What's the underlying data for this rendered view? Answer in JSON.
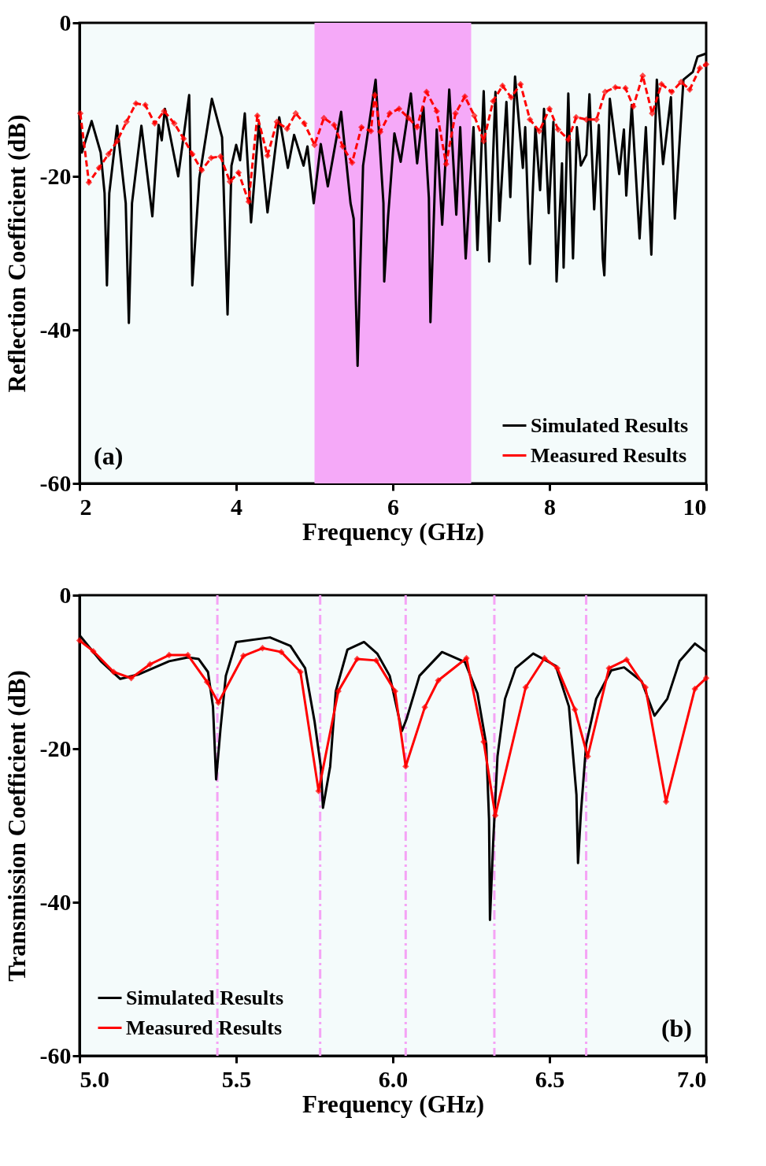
{
  "chart_data": [
    {
      "type": "line",
      "xlabel": "Frequency (GHz)",
      "ylabel": "Reflection Coefficient (dB)",
      "xlim": [
        2,
        10
      ],
      "ylim": [
        -60,
        0
      ],
      "xticks": [
        2,
        4,
        6,
        8,
        10
      ],
      "yticks": [
        -60,
        -40,
        -20,
        0
      ],
      "legend": "bottom right",
      "annotations": [
        "(a)"
      ],
      "bands": [
        {
          "axis": "x",
          "from": 5,
          "to": 7,
          "color": "#f5a9f8"
        }
      ],
      "series": [
        {
          "name": "Simulated Results",
          "color": "#000000",
          "marker": "none",
          "x": [
            2.0,
            2.03,
            2.155,
            2.27,
            2.32,
            2.35,
            2.38,
            2.48,
            2.59,
            2.63,
            2.67,
            2.79,
            2.93,
            3.01,
            3.05,
            3.09,
            3.26,
            3.4,
            3.44,
            3.53,
            3.69,
            3.82,
            3.89,
            3.94,
            4.0,
            4.05,
            4.11,
            4.19,
            4.29,
            4.4,
            4.55,
            4.66,
            4.74,
            4.86,
            4.91,
            4.99,
            5.08,
            5.17,
            5.34,
            5.46,
            5.5,
            5.55,
            5.62,
            5.78,
            5.88,
            5.89,
            5.94,
            6.02,
            6.1,
            6.23,
            6.31,
            6.39,
            6.46,
            6.48,
            6.56,
            6.63,
            6.72,
            6.81,
            6.86,
            6.93,
            7.03,
            7.08,
            7.16,
            7.23,
            7.31,
            7.36,
            7.45,
            7.5,
            7.56,
            7.66,
            7.69,
            7.75,
            7.82,
            7.88,
            7.93,
            7.99,
            8.05,
            8.09,
            8.16,
            8.18,
            8.24,
            8.3,
            8.35,
            8.4,
            8.47,
            8.51,
            8.57,
            8.63,
            8.68,
            8.7,
            8.77,
            8.89,
            8.95,
            8.98,
            9.05,
            9.15,
            9.23,
            9.3,
            9.37,
            9.45,
            9.55,
            9.6,
            9.71,
            9.83,
            9.89,
            10.0
          ],
          "values": [
            -12.0,
            -16.9,
            -12.8,
            -16.9,
            -22.2,
            -34.2,
            -22.2,
            -13.4,
            -23.5,
            -39.1,
            -23.5,
            -13.4,
            -25.2,
            -13.3,
            -15.3,
            -11.2,
            -20.0,
            -9.4,
            -34.2,
            -20.2,
            -9.9,
            -14.9,
            -38.0,
            -18.6,
            -15.9,
            -17.9,
            -11.8,
            -26.0,
            -13.1,
            -24.7,
            -12.3,
            -18.9,
            -14.6,
            -18.6,
            -16.1,
            -23.5,
            -15.8,
            -21.3,
            -11.6,
            -23.5,
            -25.5,
            -44.7,
            -18.6,
            -7.4,
            -23.5,
            -33.7,
            -25.2,
            -14.4,
            -18.1,
            -9.2,
            -18.3,
            -11.0,
            -22.8,
            -39.0,
            -13.9,
            -26.3,
            -8.7,
            -25.0,
            -13.6,
            -30.7,
            -13.6,
            -29.6,
            -8.9,
            -31.1,
            -9.0,
            -25.8,
            -10.3,
            -22.7,
            -7.0,
            -18.9,
            -13.6,
            -31.4,
            -13.6,
            -21.8,
            -11.2,
            -24.8,
            -12.9,
            -33.7,
            -18.3,
            -31.9,
            -9.2,
            -30.7,
            -13.6,
            -18.6,
            -17.2,
            -9.3,
            -24.3,
            -13.3,
            -30.7,
            -32.9,
            -9.9,
            -19.7,
            -13.9,
            -22.5,
            -10.7,
            -28.1,
            -13.6,
            -30.2,
            -7.4,
            -18.4,
            -9.7,
            -25.5,
            -7.4,
            -6.4,
            -4.4,
            -4.0
          ]
        },
        {
          "name": "Measured Results",
          "color": "#ff0000",
          "marker": "diamond",
          "line_style": "dashed",
          "x": [
            2.01,
            2.12,
            2.25,
            2.37,
            2.48,
            2.6,
            2.72,
            2.84,
            2.96,
            3.08,
            3.21,
            3.33,
            3.44,
            3.56,
            3.68,
            3.8,
            3.92,
            4.03,
            4.16,
            4.27,
            4.4,
            4.52,
            4.65,
            4.76,
            4.87,
            5.0,
            5.12,
            5.25,
            5.36,
            5.48,
            5.6,
            5.72,
            5.77,
            5.84,
            5.96,
            6.08,
            6.2,
            6.31,
            6.43,
            6.56,
            6.68,
            6.8,
            6.92,
            7.04,
            7.16,
            7.28,
            7.4,
            7.51,
            7.63,
            7.75,
            7.87,
            8.0,
            8.11,
            8.24,
            8.34,
            8.47,
            8.6,
            8.71,
            8.84,
            8.97,
            9.07,
            9.19,
            9.31,
            9.43,
            9.56,
            9.68,
            9.79,
            9.92,
            10.0
          ],
          "values": [
            -11.8,
            -20.8,
            -18.9,
            -17.1,
            -15.4,
            -12.9,
            -10.5,
            -10.7,
            -13.1,
            -11.5,
            -13.1,
            -15.1,
            -17.1,
            -19.2,
            -17.6,
            -17.4,
            -20.7,
            -19.5,
            -23.3,
            -12.1,
            -17.3,
            -12.9,
            -13.8,
            -11.8,
            -13.1,
            -15.9,
            -12.4,
            -13.3,
            -16.1,
            -18.2,
            -13.6,
            -14.1,
            -9.4,
            -14.2,
            -11.8,
            -11.2,
            -12.4,
            -13.6,
            -9.0,
            -11.5,
            -18.4,
            -11.8,
            -9.6,
            -12.1,
            -15.4,
            -10.2,
            -8.2,
            -9.7,
            -8.0,
            -12.6,
            -14.1,
            -11.2,
            -13.9,
            -15.2,
            -12.3,
            -12.6,
            -12.6,
            -9.0,
            -8.4,
            -8.5,
            -10.9,
            -6.9,
            -11.8,
            -8.0,
            -9.0,
            -7.7,
            -8.7,
            -5.9,
            -5.4
          ]
        }
      ]
    },
    {
      "type": "line",
      "xlabel": "Frequency (GHz)",
      "ylabel": "Transmission Coefficient (dB)",
      "xlim": [
        5,
        7
      ],
      "ylim": [
        -60,
        0
      ],
      "xticks": [
        {
          "value": 5,
          "label": "5.0"
        },
        5.5,
        {
          "value": 6,
          "label": "6.0"
        },
        6.5,
        {
          "value": 7,
          "label": "7.0"
        }
      ],
      "yticks": [
        -60,
        -40,
        -20,
        0
      ],
      "legend": "bottom left",
      "annotations": [
        "(b)"
      ],
      "ref_lines": [
        {
          "axis": "x",
          "value": 5.44,
          "color": "#f5a3f5",
          "line_style": "dashed"
        },
        {
          "axis": "x",
          "value": 5.768,
          "color": "#f5a3f5",
          "line_style": "dashed"
        },
        {
          "axis": "x",
          "value": 6.041,
          "color": "#f5a3f5",
          "line_style": "dashed"
        },
        {
          "axis": "x",
          "value": 6.324,
          "color": "#f5a3f5",
          "line_style": "dashed"
        },
        {
          "axis": "x",
          "value": 6.617,
          "color": "#f5a3f5",
          "line_style": "dashed"
        }
      ],
      "series": [
        {
          "name": "Simulated Results",
          "color": "#000000",
          "marker": "none",
          "x": [
            5.0,
            5.068,
            5.13,
            5.19,
            5.286,
            5.346,
            5.38,
            5.41,
            5.426,
            5.436,
            5.45,
            5.467,
            5.5,
            5.608,
            5.673,
            5.72,
            5.75,
            5.77,
            5.777,
            5.8,
            5.818,
            5.855,
            5.908,
            5.95,
            5.99,
            6.029,
            6.044,
            6.085,
            6.157,
            6.23,
            6.27,
            6.298,
            6.307,
            6.31,
            6.32,
            6.334,
            6.358,
            6.392,
            6.448,
            6.52,
            6.562,
            6.586,
            6.591,
            6.6,
            6.617,
            6.649,
            6.697,
            6.738,
            6.794,
            6.835,
            6.876,
            6.915,
            6.964,
            7.0
          ],
          "values": [
            -5.2,
            -8.6,
            -10.9,
            -10.3,
            -8.6,
            -8.1,
            -8.3,
            -10.0,
            -14.5,
            -24.0,
            -17.4,
            -10.5,
            -6.1,
            -5.5,
            -6.6,
            -9.5,
            -16.4,
            -22.3,
            -27.7,
            -22.3,
            -12.5,
            -7.1,
            -6.1,
            -7.6,
            -10.5,
            -17.7,
            -16.1,
            -10.5,
            -7.4,
            -8.7,
            -12.8,
            -19.4,
            -29.2,
            -42.3,
            -32.4,
            -21.0,
            -13.5,
            -9.5,
            -7.6,
            -9.2,
            -14.5,
            -26.0,
            -34.9,
            -28.5,
            -19.4,
            -13.5,
            -9.8,
            -9.4,
            -11.2,
            -15.7,
            -13.5,
            -8.6,
            -6.3,
            -7.4
          ]
        },
        {
          "name": "Measured Results",
          "color": "#ff0000",
          "marker": "diamond",
          "x": [
            5.0,
            5.044,
            5.109,
            5.165,
            5.225,
            5.286,
            5.346,
            5.407,
            5.443,
            5.523,
            5.584,
            5.644,
            5.705,
            5.763,
            5.826,
            5.886,
            5.947,
            6.007,
            6.041,
            6.102,
            6.145,
            6.235,
            6.29,
            6.327,
            6.424,
            6.484,
            6.525,
            6.581,
            6.622,
            6.69,
            6.746,
            6.806,
            6.872,
            6.964,
            7.0
          ],
          "values": [
            -5.9,
            -7.3,
            -10.0,
            -10.8,
            -9.0,
            -7.8,
            -7.8,
            -11.3,
            -14.0,
            -7.9,
            -6.9,
            -7.4,
            -10.0,
            -25.5,
            -12.5,
            -8.3,
            -8.5,
            -12.5,
            -22.3,
            -14.6,
            -11.1,
            -8.2,
            -19.1,
            -28.7,
            -12.0,
            -8.2,
            -9.5,
            -14.9,
            -21.0,
            -9.5,
            -8.4,
            -12.0,
            -26.9,
            -12.2,
            -10.8
          ]
        }
      ]
    }
  ]
}
